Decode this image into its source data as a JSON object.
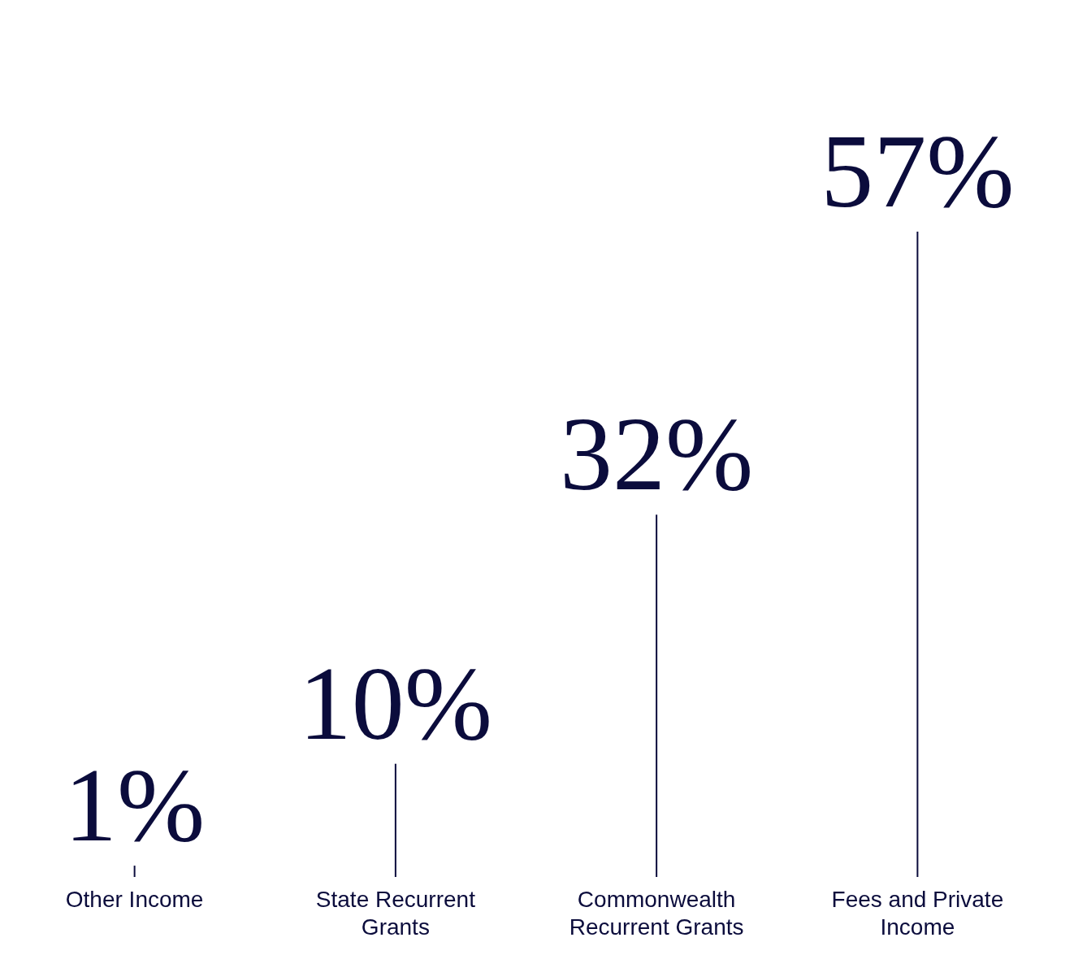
{
  "chart_data": {
    "type": "bar",
    "categories": [
      "Other Income",
      "State Recurrent Grants",
      "Commonwealth Recurrent Grants",
      "Fees and Private Income"
    ],
    "values": [
      1,
      10,
      32,
      57
    ],
    "value_labels": [
      "1%",
      "10%",
      "32%",
      "57%"
    ],
    "color": "#0b0c3c"
  }
}
